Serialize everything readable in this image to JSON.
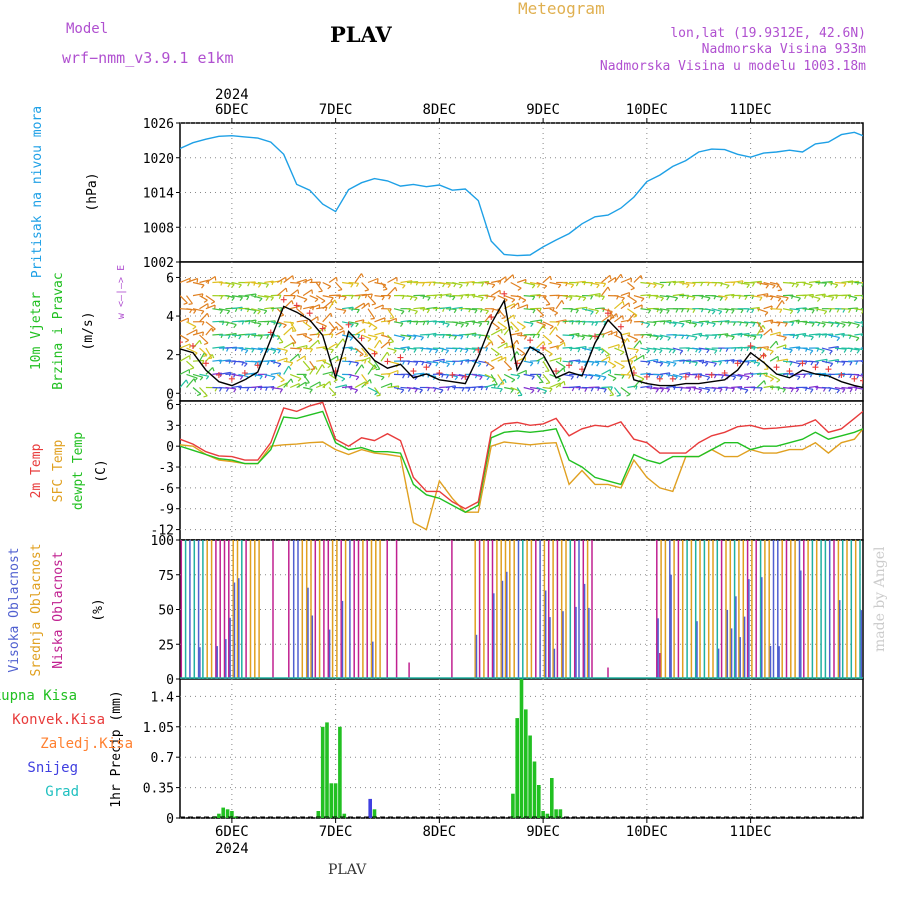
{
  "header": {
    "model_label": "Model",
    "model_name": "wrf−nmm_v3.9.1  e1km",
    "station": "PLAV",
    "product": "Meteogram",
    "coords": "lon,lat (19.9312E, 42.6N)",
    "elevation": "Nadmorska Visina 933m",
    "model_elevation": "Nadmorska Visina u modelu 1003.18m",
    "footer_station": "PLAV",
    "watermark": "made by Angel"
  },
  "time_axis": {
    "year": "2024",
    "labels": [
      "6DEC",
      "7DEC",
      "8DEC",
      "9DEC",
      "10DEC",
      "11DEC"
    ],
    "range_hours": [
      -12,
      146
    ]
  },
  "colors": {
    "pressure": "#1ea0e6",
    "temp": "#e83c3c",
    "sfc_temp": "#e0a020",
    "dewpoint": "#22c022",
    "wind_speed": "#000000",
    "gust": "#e83c3c",
    "cloud_high": "#5060d0",
    "cloud_mid": "#e0a020",
    "cloud_low": "#c02090",
    "cloud_total": "#20b0a0",
    "precip_total": "#22c022",
    "precip_conv": "#e83c3c",
    "precip_frz": "#ff8030",
    "precip_snow": "#4040e0",
    "precip_grad": "#20c0c0",
    "label_purple": "#b050d0",
    "label_gold": "#e0b050"
  },
  "chart_data": [
    {
      "type": "line",
      "panel": "pressure",
      "ylabel_left": "Pritisak na nivou mora",
      "unit": "(hPa)",
      "ylim": [
        1002,
        1026
      ],
      "yticks": [
        1002,
        1008,
        1014,
        1020,
        1026
      ],
      "x_hours": [
        -12,
        -9,
        -6,
        -3,
        0,
        3,
        6,
        9,
        12,
        15,
        18,
        21,
        24,
        27,
        30,
        33,
        36,
        39,
        42,
        45,
        48,
        51,
        54,
        57,
        60,
        63,
        66,
        69,
        72,
        75,
        78,
        81,
        84,
        87,
        90,
        93,
        96,
        99,
        102,
        105,
        108,
        111,
        114,
        117,
        120,
        123,
        126,
        129,
        132,
        135,
        138,
        141,
        144,
        146
      ],
      "series": [
        {
          "values": [
            1021.6,
            1022.6,
            1023.2,
            1023.7,
            1023.8,
            1023.6,
            1023.4,
            1022.7,
            1020.6,
            1015.4,
            1014.4,
            1012.0,
            1010.7,
            1014.5,
            1015.7,
            1016.4,
            1016.0,
            1015.1,
            1015.4,
            1015.0,
            1015.3,
            1014.4,
            1014.6,
            1012.6,
            1005.6,
            1003.3,
            1003.1,
            1003.2,
            1004.6,
            1005.8,
            1006.9,
            1008.6,
            1009.8,
            1010.1,
            1011.3,
            1013.2,
            1015.9,
            1017.0,
            1018.5,
            1019.5,
            1021.0,
            1021.5,
            1021.4,
            1020.6,
            1020.1,
            1020.8,
            1021.0,
            1021.3,
            1021.0,
            1022.4,
            1022.7,
            1024.0,
            1024.4,
            1023.8
          ]
        }
      ]
    },
    {
      "type": "line",
      "panel": "wind",
      "ylabel_left": [
        "10m Vjetar",
        "Brzina i Pravac"
      ],
      "unit": "(m/s)",
      "compass": "w <—|—> E",
      "ylim": [
        -0.4,
        6.8
      ],
      "yticks": [
        0,
        2,
        4,
        6
      ],
      "x_hours": [
        -12,
        -9,
        -6,
        -3,
        0,
        3,
        6,
        9,
        12,
        15,
        18,
        21,
        24,
        27,
        30,
        33,
        36,
        39,
        42,
        45,
        48,
        51,
        54,
        57,
        60,
        63,
        66,
        69,
        72,
        75,
        78,
        81,
        84,
        87,
        90,
        93,
        96,
        99,
        102,
        105,
        108,
        111,
        114,
        117,
        120,
        123,
        126,
        129,
        132,
        135,
        138,
        141,
        144,
        146
      ],
      "series": [
        {
          "name": "speed",
          "values": [
            2.3,
            2.1,
            1.2,
            0.6,
            0.4,
            0.7,
            1.1,
            2.8,
            4.5,
            4.2,
            3.8,
            3.0,
            0.8,
            3.2,
            2.5,
            1.7,
            1.3,
            1.5,
            0.8,
            1.0,
            0.7,
            0.6,
            0.5,
            1.9,
            3.6,
            4.8,
            1.2,
            2.4,
            2.0,
            0.8,
            1.1,
            0.9,
            2.6,
            3.8,
            3.1,
            0.7,
            0.5,
            0.4,
            0.4,
            0.5,
            0.5,
            0.6,
            0.7,
            1.2,
            2.1,
            1.6,
            1.0,
            0.8,
            1.2,
            1.0,
            0.9,
            0.6,
            0.4,
            0.3
          ]
        }
      ]
    },
    {
      "type": "line",
      "panel": "temperature",
      "ylabel_left": [
        "2m Temp",
        "SFC Temp",
        "dewpt Temp"
      ],
      "unit": "(C)",
      "ylim": [
        -13.5,
        6.5
      ],
      "yticks": [
        -12,
        -9,
        -6,
        -3,
        0,
        3,
        6
      ],
      "x_hours": [
        -12,
        -9,
        -6,
        -3,
        0,
        3,
        6,
        9,
        12,
        15,
        18,
        21,
        24,
        27,
        30,
        33,
        36,
        39,
        42,
        45,
        48,
        51,
        54,
        57,
        60,
        63,
        66,
        69,
        72,
        75,
        78,
        81,
        84,
        87,
        90,
        93,
        96,
        99,
        102,
        105,
        108,
        111,
        114,
        117,
        120,
        123,
        126,
        129,
        132,
        135,
        138,
        141,
        144,
        146
      ],
      "series": [
        {
          "name": "2m Temp",
          "values": [
            1.0,
            0.3,
            -0.8,
            -1.4,
            -1.5,
            -2.0,
            -2.0,
            0.5,
            5.5,
            5.0,
            5.8,
            6.3,
            1.0,
            0.0,
            1.2,
            0.8,
            1.8,
            0.8,
            -4.5,
            -6.5,
            -6.5,
            -8.0,
            -9.0,
            -8.0,
            2.0,
            3.2,
            3.4,
            3.0,
            3.2,
            4.0,
            1.5,
            2.5,
            3.0,
            2.8,
            3.5,
            1.0,
            0.5,
            -1.0,
            -1.0,
            -1.0,
            0.5,
            1.5,
            2.0,
            2.8,
            3.0,
            2.5,
            2.6,
            2.8,
            3.0,
            3.8,
            2.0,
            2.5,
            4.0,
            5.0
          ]
        },
        {
          "name": "SFC Temp",
          "values": [
            0.2,
            0.0,
            -1.2,
            -2.0,
            -2.2,
            -2.5,
            -2.5,
            0.0,
            0.2,
            0.3,
            0.5,
            0.6,
            -0.5,
            -1.2,
            -0.5,
            -1.0,
            -1.2,
            -1.5,
            -11.0,
            -12.0,
            -5.0,
            -7.5,
            -9.5,
            -9.5,
            0.0,
            0.6,
            0.4,
            0.2,
            0.4,
            0.5,
            -5.5,
            -3.5,
            -5.5,
            -5.5,
            -6.0,
            -2.0,
            -4.5,
            -6.0,
            -6.5,
            -1.5,
            -1.5,
            -0.5,
            -1.5,
            -1.5,
            -0.5,
            -1.0,
            -1.0,
            -0.5,
            -0.5,
            0.5,
            -1.0,
            0.5,
            1.0,
            2.5
          ]
        },
        {
          "name": "dewpt Temp",
          "values": [
            0.0,
            -0.6,
            -1.2,
            -1.8,
            -2.0,
            -2.5,
            -2.5,
            -0.5,
            4.2,
            4.0,
            4.5,
            5.0,
            0.5,
            -0.5,
            -0.2,
            -0.8,
            -0.8,
            -1.0,
            -5.5,
            -7.0,
            -7.5,
            -8.5,
            -9.5,
            -8.5,
            1.2,
            2.0,
            2.2,
            2.0,
            2.2,
            2.5,
            -2.0,
            -3.0,
            -4.5,
            -5.0,
            -5.5,
            -1.2,
            -2.0,
            -2.5,
            -1.5,
            -1.5,
            -1.5,
            -0.5,
            0.5,
            0.5,
            -0.5,
            0.0,
            0.0,
            0.5,
            1.0,
            2.0,
            1.0,
            1.5,
            2.0,
            2.5
          ]
        }
      ]
    },
    {
      "type": "bar",
      "panel": "cloud",
      "ylabel_left": [
        "Visoka Oblacnost",
        "Srednja Oblacnost",
        "Niska Oblacnost"
      ],
      "unit": "(%)",
      "ylim": [
        0,
        100
      ],
      "yticks": [
        0,
        25,
        50,
        75,
        100
      ]
    },
    {
      "type": "bar",
      "panel": "precip",
      "ylabel_left": [
        "Ukupna Kisa",
        "Konvek.Kisa",
        "Zaledj.Kisa",
        "Snijeg",
        "Grad"
      ],
      "unit": "1hr Precip (mm)",
      "ylim": [
        0,
        1.6
      ],
      "yticks": [
        0,
        0.35,
        0.7,
        1.05,
        1.4
      ],
      "ytick_labels": [
        "0",
        "0.35",
        "0.7",
        "1.05",
        "1.4"
      ],
      "x_hours": [
        -4,
        -3,
        -2,
        -1,
        0,
        1,
        20,
        21,
        22,
        23,
        24,
        25,
        26,
        32,
        33,
        65,
        66,
        67,
        68,
        69,
        70,
        71,
        72,
        73,
        74,
        75,
        76
      ],
      "series": [
        {
          "name": "Ukupna Kisa",
          "values": [
            0.02,
            0.05,
            0.12,
            0.1,
            0.08,
            0.02,
            0.08,
            1.05,
            1.1,
            0.4,
            0.4,
            1.05,
            0.05,
            0.22,
            0.1,
            0.28,
            1.15,
            1.62,
            1.25,
            0.95,
            0.65,
            0.38,
            0.08,
            0.05,
            0.46,
            0.1,
            0.1
          ]
        }
      ]
    }
  ]
}
